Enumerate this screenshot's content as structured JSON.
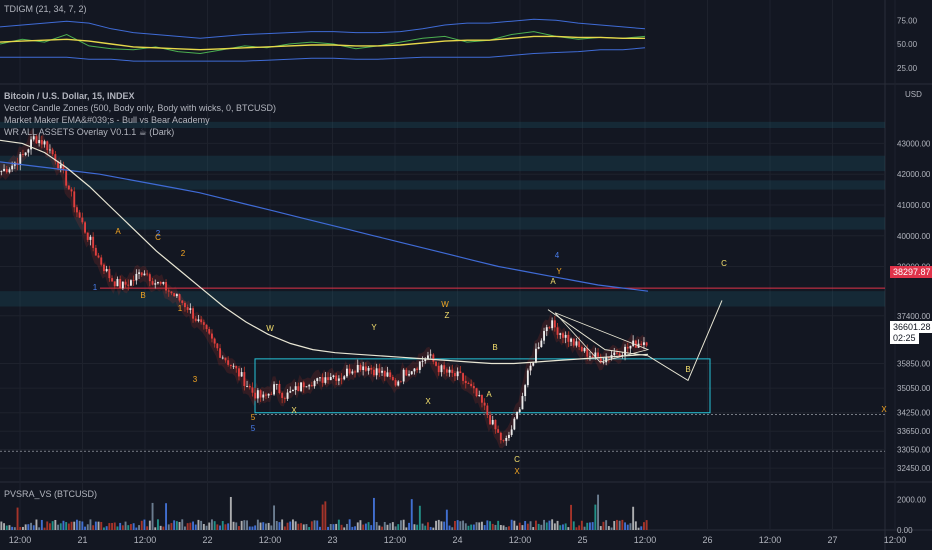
{
  "indicator_pane": {
    "title": "TDIGM (21, 34, 7, 2)",
    "ticks": [
      "75.00",
      "50.00",
      "25.00"
    ]
  },
  "main_pane": {
    "symbol_line": "Bitcoin / U.S. Dollar, 15, INDEX",
    "legend": [
      "Vector Candle Zones (500, Body only, Body with wicks, 0, BTCUSD)",
      "Market Maker EMA&#039;s - Bull vs Bear Academy",
      "WR ALL ASSETS Overlay V0.1.1 ☕ (Dark)"
    ],
    "currency": "USD",
    "last_price": "36601.28",
    "countdown": "02:25",
    "resistance_label": "38297.87"
  },
  "volume_pane": {
    "title": "PVSRA_VS (BTCUSD)",
    "ticks": [
      "2000.00",
      "0.00"
    ]
  },
  "colors": {
    "background": "#131722",
    "grid": "#1e222d",
    "up": "#26a69a",
    "down": "#ef5350",
    "resistance": "#e0334a",
    "box": "#26c6da",
    "wave_orange": "#f5a623",
    "wave_yellow": "#f5e06e",
    "wave_blue": "#4a7ff0",
    "ema_blue": "#3f6bd6",
    "ema_white": "#e8e6d4",
    "ema_gold": "#c9a227"
  },
  "chart_data": [
    {
      "type": "line",
      "title": "TDIGM (21, 34, 7, 2)",
      "ylim": [
        10,
        90
      ],
      "y_ticks": [
        75,
        50,
        25
      ],
      "series": [
        {
          "values": [
            50,
            55,
            52,
            60,
            48,
            45,
            44,
            47,
            42,
            40,
            44,
            48,
            46,
            50,
            52,
            50,
            45,
            48,
            52,
            56,
            58,
            52,
            54,
            60,
            63,
            58,
            55,
            57,
            56,
            58
          ]
        },
        {
          "values": [
            52,
            53,
            54,
            55,
            53,
            50,
            47,
            46,
            45,
            44,
            45,
            46,
            47,
            48,
            49,
            49,
            48,
            48,
            49,
            51,
            53,
            54,
            54,
            56,
            58,
            58,
            57,
            57,
            56,
            56
          ]
        },
        {
          "values": [
            68,
            70,
            72,
            74,
            72,
            66,
            62,
            60,
            58,
            56,
            58,
            60,
            61,
            62,
            63,
            63,
            62,
            62,
            63,
            66,
            70,
            72,
            72,
            74,
            76,
            75,
            72,
            70,
            68,
            66
          ]
        },
        {
          "values": [
            36,
            36,
            36,
            36,
            34,
            34,
            32,
            32,
            32,
            32,
            32,
            32,
            33,
            34,
            35,
            35,
            34,
            34,
            35,
            36,
            36,
            36,
            36,
            38,
            40,
            41,
            42,
            44,
            44,
            46
          ]
        }
      ]
    },
    {
      "type": "candlestick",
      "title": "Bitcoin / U.S. Dollar, 15, INDEX",
      "ylim": [
        32000,
        44800
      ],
      "y_ticks": [
        43000,
        42000,
        41000,
        40000,
        39000,
        37400,
        35850,
        35050,
        34250,
        33650,
        33050,
        32450
      ],
      "x_tick_labels": [
        "12:00",
        "21",
        "12:00",
        "22",
        "12:00",
        "23",
        "12:00",
        "24",
        "12:00",
        "25",
        "12:00",
        "26",
        "12:00",
        "27",
        "12:00"
      ],
      "price_path": [
        42100,
        42300,
        42600,
        43200,
        43000,
        42500,
        41700,
        40700,
        39900,
        39200,
        38600,
        38350,
        38550,
        38900,
        38500,
        38300,
        38000,
        37700,
        37200,
        36700,
        36200,
        35800,
        35400,
        34900,
        34700,
        35100,
        34800,
        35000,
        35300,
        35250,
        35500,
        35400,
        35700,
        35800,
        35650,
        35500,
        35200,
        35600,
        35800,
        36100,
        35700,
        35500,
        35400,
        35000,
        34500,
        33800,
        33200,
        34000,
        35300,
        36400,
        37200,
        36900,
        36600,
        36300,
        36100,
        36000,
        36200,
        36300,
        36500,
        36600
      ],
      "series": [
        {
          "name": "EMA 800",
          "values": [
            42400,
            42300,
            42200,
            42100,
            42000,
            41850,
            41700,
            41550,
            41400,
            41200,
            41000,
            40800,
            40600,
            40400,
            40200,
            40000,
            39800,
            39600,
            39400,
            39200,
            39000,
            38850,
            38700,
            38550,
            38400,
            38300,
            38200
          ]
        },
        {
          "name": "EMA 200",
          "values": [
            43100,
            43000,
            42700,
            42200,
            41600,
            40900,
            40200,
            39500,
            38900,
            38300,
            37700,
            37200,
            36800,
            36500,
            36300,
            36200,
            36150,
            36100,
            36050,
            36000,
            35950,
            35900,
            35850,
            35850,
            35900,
            35950,
            36000,
            36050,
            36100,
            36150
          ]
        }
      ],
      "annotations": {
        "resistance": 38297.87,
        "last_price": 36601.28,
        "countdown": "02:25",
        "box_range": [
          34250,
          36000
        ],
        "wave_labels": [
          "1",
          "2",
          "3",
          "4",
          "5",
          "A",
          "B",
          "C",
          "W",
          "X",
          "Y",
          "Z"
        ]
      }
    },
    {
      "type": "bar",
      "title": "PVSRA_VS (BTCUSD)",
      "ylim": [
        0,
        3000
      ],
      "y_ticks": [
        2000,
        0
      ]
    }
  ]
}
